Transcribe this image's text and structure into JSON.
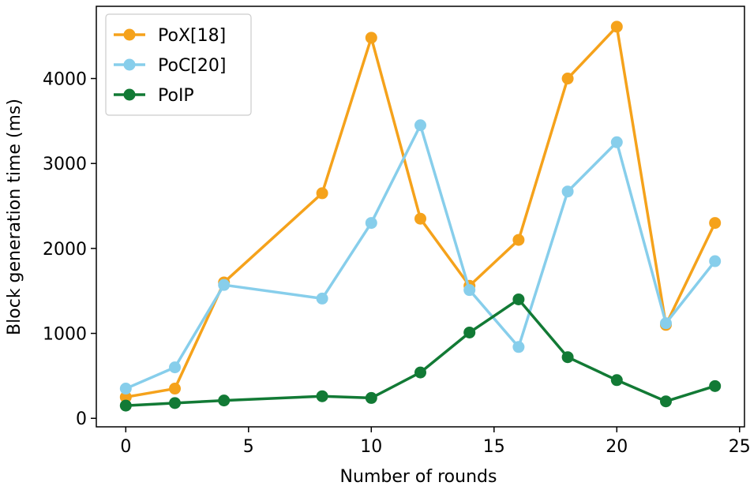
{
  "chart_data": {
    "type": "line",
    "title": "",
    "xlabel": "Number of rounds",
    "ylabel": "Block generation time (ms)",
    "xlim": [
      -1.2,
      25.2
    ],
    "ylim": [
      -100,
      4850
    ],
    "xticks": [
      0,
      5,
      10,
      15,
      20,
      25
    ],
    "yticks": [
      0,
      1000,
      2000,
      3000,
      4000
    ],
    "grid": false,
    "legend_position": "top-left",
    "x": [
      0,
      2,
      4,
      8,
      10,
      12,
      14,
      16,
      18,
      20,
      22,
      24
    ],
    "series": [
      {
        "name": "PoX[18]",
        "color": "#f5a21b",
        "values": [
          250,
          350,
          1600,
          2650,
          4480,
          2350,
          1560,
          2100,
          4000,
          4610,
          1100,
          2300
        ]
      },
      {
        "name": "PoC[20]",
        "color": "#87ceeb",
        "values": [
          350,
          600,
          1570,
          1410,
          2300,
          3450,
          1510,
          840,
          2670,
          3250,
          1120,
          1850
        ]
      },
      {
        "name": "PoIP",
        "color": "#127a35",
        "values": [
          150,
          180,
          210,
          260,
          240,
          540,
          1010,
          1400,
          720,
          450,
          200,
          380
        ]
      }
    ]
  }
}
